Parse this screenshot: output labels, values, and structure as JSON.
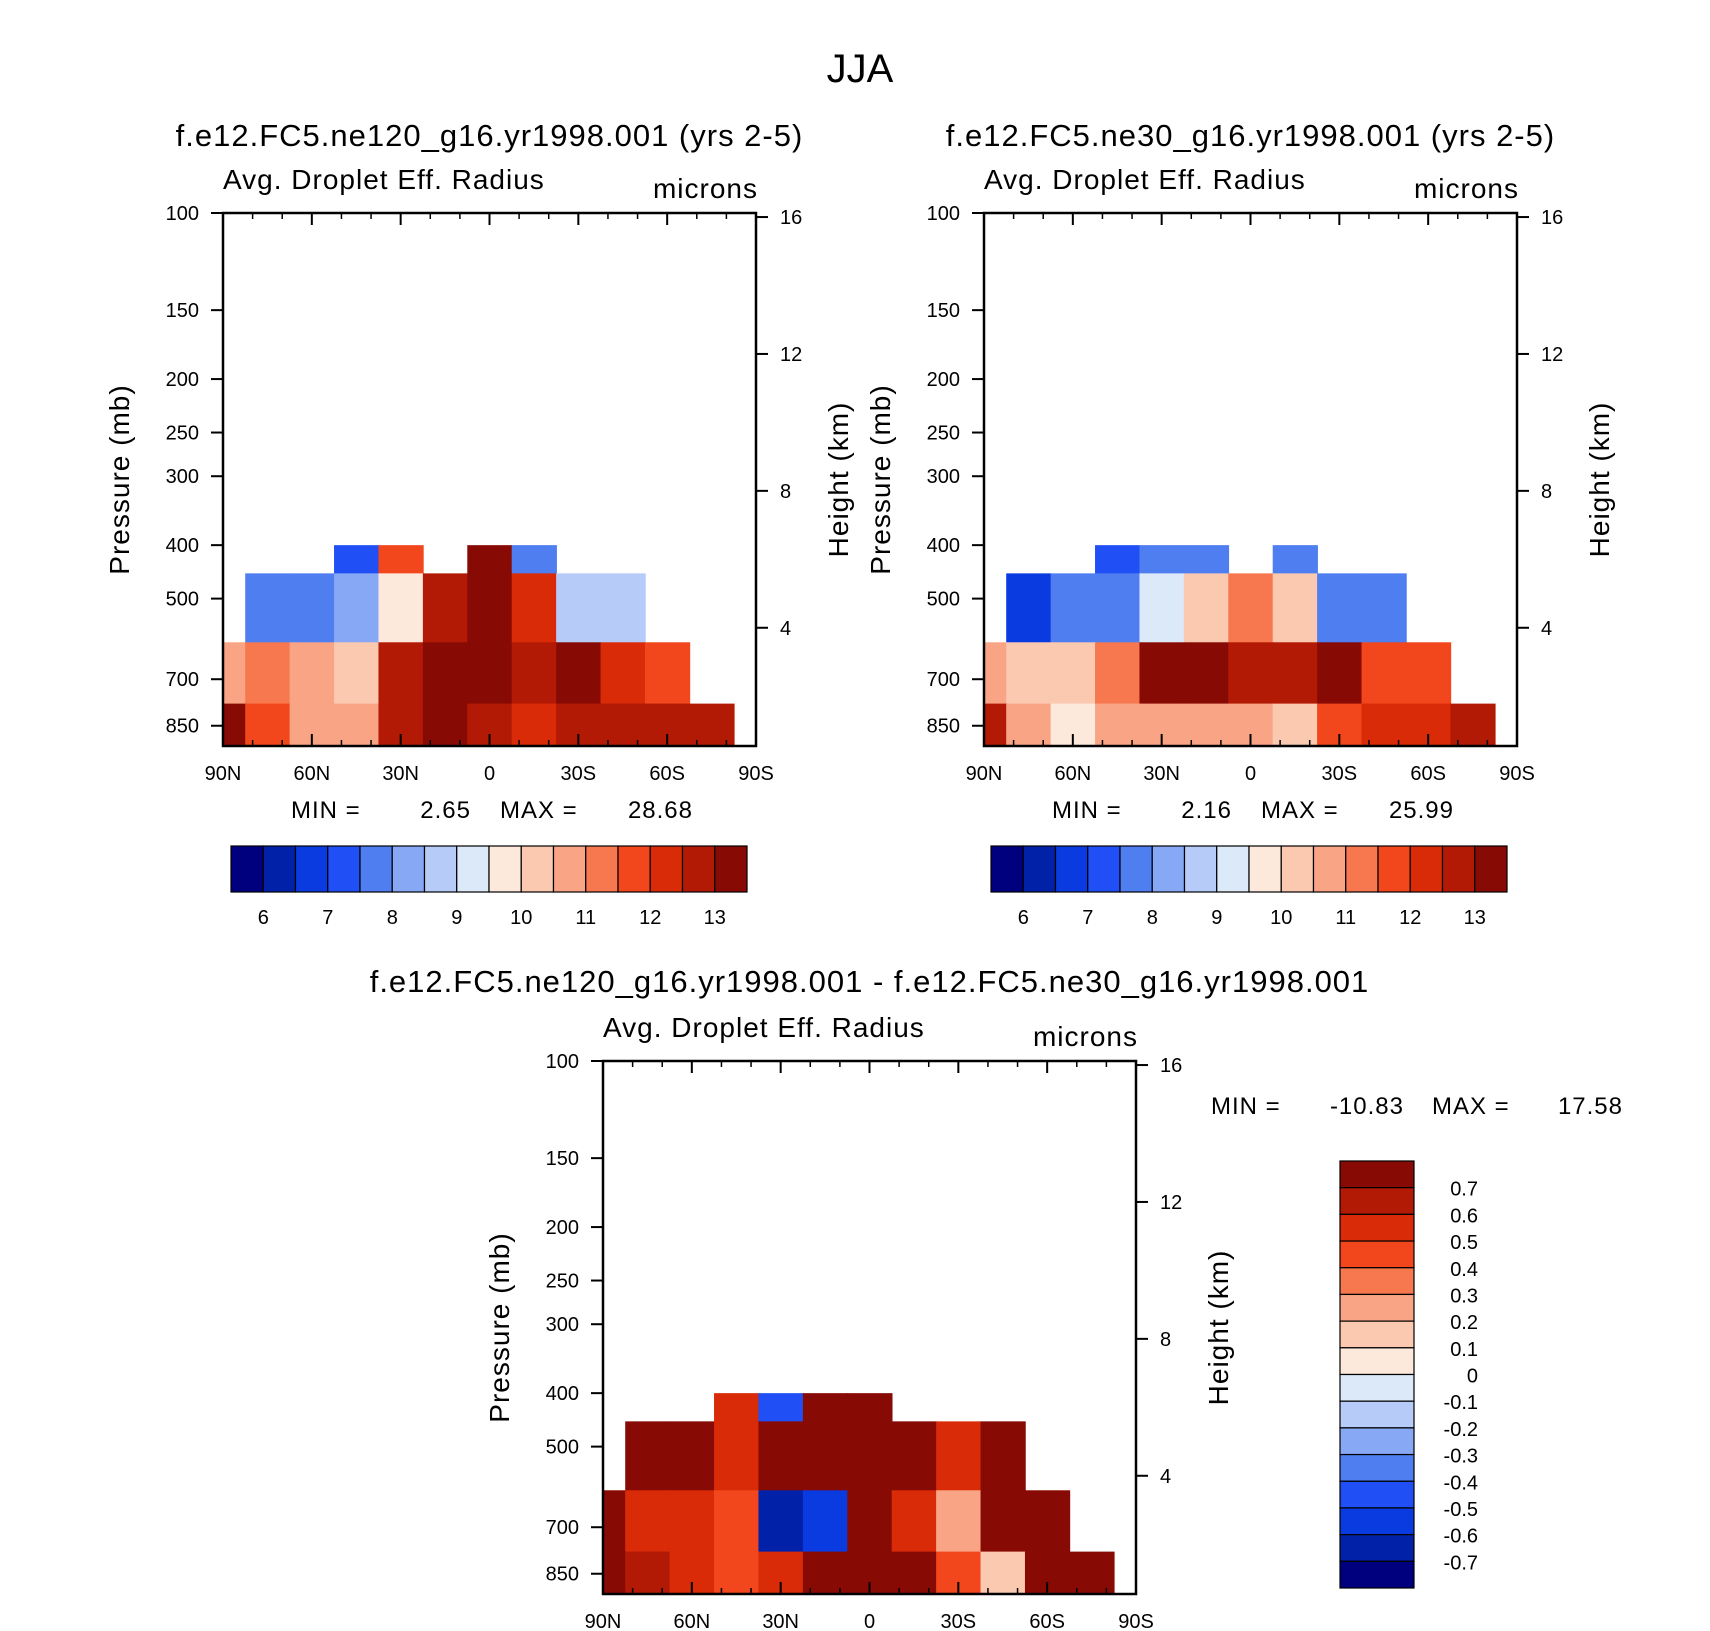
{
  "figure_title": "JJA",
  "palette": {
    "full": [
      "#00007f",
      "#0021a8",
      "#0a3be0",
      "#2050f5",
      "#4f7ef0",
      "#86a8f5",
      "#b6cbf8",
      "#dbe9f9",
      "#fde8dc",
      "#fbc8b0",
      "#f9a585",
      "#f7784f",
      "#f2461c",
      "#d92b08",
      "#b31a05",
      "#880a04"
    ],
    "diff": [
      "#00007f",
      "#0021a8",
      "#0a3be0",
      "#2050f5",
      "#4f7ef0",
      "#86a8f5",
      "#b6cbf8",
      "#dbe9f9",
      "#fde8dc",
      "#fbc8b0",
      "#f9a585",
      "#f7784f",
      "#f2461c",
      "#d92b08",
      "#b31a05",
      "#880a04"
    ],
    "missing": "#ffffff"
  },
  "chart_data": [
    {
      "id": "panel1",
      "type": "heatmap",
      "title": "f.e12.FC5.ne120_g16.yr1998.001 (yrs 2-5)",
      "variable": "Avg. Droplet Eff. Radius",
      "units": "microns",
      "xlabel": "",
      "ylabel": "Pressure (mb)",
      "y2label": "Height (km)",
      "x_ticks": [
        "90N",
        "60N",
        "30N",
        "0",
        "30S",
        "60S",
        "90S"
      ],
      "y_ticks": [
        100,
        150,
        200,
        250,
        300,
        400,
        500,
        700,
        850
      ],
      "y2_ticks": [
        4,
        8,
        12,
        16
      ],
      "ylim": [
        100,
        925
      ],
      "min_text": "MIN =",
      "min_value": "2.65",
      "max_text": "MAX =",
      "max_value": "28.68",
      "colorbar_labels": [
        "6",
        "7",
        "8",
        "9",
        "10",
        "11",
        "12",
        "13"
      ],
      "levels": [
        6,
        6.5,
        7,
        7.5,
        8,
        8.5,
        9,
        9.5,
        10,
        10.5,
        11,
        11.5,
        12,
        12.5,
        13
      ],
      "lat": [
        90,
        75,
        60,
        45,
        30,
        15,
        0,
        -15,
        -30,
        -45,
        -60,
        -75,
        -90
      ],
      "plev": [
        400,
        500,
        700,
        850
      ],
      "values": [
        [
          null,
          null,
          null,
          7.0,
          11.5,
          null,
          13.5,
          7.5,
          null,
          null,
          null,
          null,
          null
        ],
        [
          null,
          7.5,
          7.8,
          8.0,
          9.5,
          12.5,
          13.5,
          12.0,
          8.5,
          8.5,
          null,
          null,
          null
        ],
        [
          10.5,
          11.0,
          10.5,
          10.0,
          12.5,
          13.5,
          14.0,
          12.5,
          13.0,
          12.0,
          11.5,
          null,
          null
        ],
        [
          13.0,
          11.5,
          10.5,
          10.5,
          12.5,
          13.0,
          12.5,
          12.0,
          12.5,
          12.5,
          12.5,
          12.5,
          null
        ]
      ]
    },
    {
      "id": "panel2",
      "type": "heatmap",
      "title": "f.e12.FC5.ne30_g16.yr1998.001 (yrs 2-5)",
      "variable": "Avg. Droplet Eff. Radius",
      "units": "microns",
      "xlabel": "",
      "ylabel": "Pressure (mb)",
      "y2label": "Height (km)",
      "x_ticks": [
        "90N",
        "60N",
        "30N",
        "0",
        "30S",
        "60S",
        "90S"
      ],
      "y_ticks": [
        100,
        150,
        200,
        250,
        300,
        400,
        500,
        700,
        850
      ],
      "y2_ticks": [
        4,
        8,
        12,
        16
      ],
      "ylim": [
        100,
        925
      ],
      "min_text": "MIN =",
      "min_value": "2.16",
      "max_text": "MAX =",
      "max_value": "25.99",
      "colorbar_labels": [
        "6",
        "7",
        "8",
        "9",
        "10",
        "11",
        "12",
        "13"
      ],
      "levels": [
        6,
        6.5,
        7,
        7.5,
        8,
        8.5,
        9,
        9.5,
        10,
        10.5,
        11,
        11.5,
        12,
        12.5,
        13
      ],
      "lat": [
        90,
        75,
        60,
        45,
        30,
        15,
        0,
        -15,
        -30,
        -45,
        -60,
        -75,
        -90
      ],
      "plev": [
        400,
        500,
        700,
        850
      ],
      "values": [
        [
          null,
          null,
          null,
          7.0,
          7.5,
          7.5,
          null,
          7.5,
          null,
          null,
          null,
          null,
          null
        ],
        [
          null,
          6.5,
          7.5,
          7.5,
          9.0,
          10.0,
          11.0,
          10.0,
          7.5,
          7.5,
          null,
          null,
          null
        ],
        [
          10.5,
          10.0,
          10.0,
          11.0,
          13.5,
          13.5,
          12.5,
          12.5,
          13.0,
          11.5,
          11.5,
          null,
          null
        ],
        [
          12.5,
          10.5,
          9.5,
          10.5,
          10.5,
          10.5,
          10.5,
          10.0,
          11.5,
          12.0,
          12.0,
          12.5,
          null
        ]
      ]
    },
    {
      "id": "panel3",
      "type": "heatmap",
      "title": "f.e12.FC5.ne120_g16.yr1998.001 - f.e12.FC5.ne30_g16.yr1998.001",
      "variable": "Avg. Droplet Eff. Radius",
      "units": "microns",
      "xlabel": "",
      "ylabel": "Pressure (mb)",
      "y2label": "Height (km)",
      "x_ticks": [
        "90N",
        "60N",
        "30N",
        "0",
        "30S",
        "60S",
        "90S"
      ],
      "y_ticks": [
        100,
        150,
        200,
        250,
        300,
        400,
        500,
        700,
        850
      ],
      "y2_ticks": [
        4,
        8,
        12,
        16
      ],
      "ylim": [
        100,
        925
      ],
      "min_text": "MIN =",
      "min_value": "-10.83",
      "max_text": "MAX =",
      "max_value": "17.58",
      "colorbar_labels": [
        "0.7",
        "0.6",
        "0.5",
        "0.4",
        "0.3",
        "0.2",
        "0.1",
        "0",
        "-0.1",
        "-0.2",
        "-0.3",
        "-0.4",
        "-0.5",
        "-0.6",
        "-0.7"
      ],
      "levels": [
        -0.7,
        -0.6,
        -0.5,
        -0.4,
        -0.3,
        -0.2,
        -0.1,
        0,
        0.1,
        0.2,
        0.3,
        0.4,
        0.5,
        0.6,
        0.7
      ],
      "lat": [
        90,
        75,
        60,
        45,
        30,
        15,
        0,
        -15,
        -30,
        -45,
        -60,
        -75,
        -90
      ],
      "plev": [
        400,
        500,
        700,
        850
      ],
      "values": [
        [
          null,
          null,
          null,
          0.5,
          -0.5,
          0.8,
          0.8,
          null,
          null,
          null,
          null,
          null,
          null
        ],
        [
          null,
          0.8,
          0.8,
          0.5,
          0.8,
          0.8,
          0.8,
          0.8,
          0.5,
          0.8,
          null,
          null,
          null
        ],
        [
          0.8,
          0.5,
          0.5,
          0.4,
          -0.7,
          -0.6,
          0.8,
          0.5,
          0.2,
          0.8,
          0.8,
          null,
          null
        ],
        [
          0.8,
          0.6,
          0.5,
          0.4,
          0.5,
          0.8,
          0.8,
          0.8,
          0.4,
          0.1,
          0.8,
          0.8,
          null
        ]
      ]
    }
  ]
}
